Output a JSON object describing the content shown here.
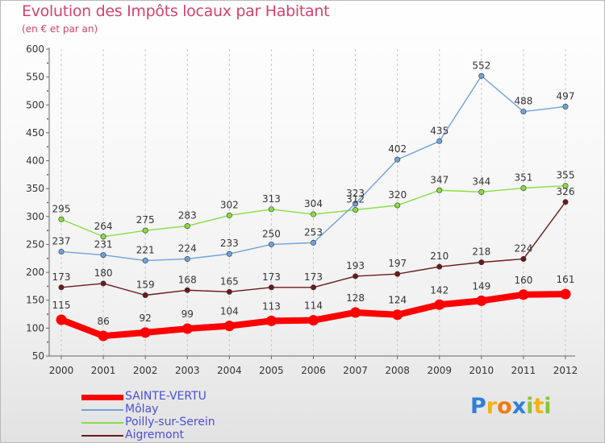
{
  "title": "Evolution des Impôts locaux par Habitant",
  "subtitle": "(en € et par an)",
  "chart_data": {
    "type": "line",
    "x": [
      "2000",
      "2001",
      "2002",
      "2003",
      "2004",
      "2005",
      "2006",
      "2007",
      "2008",
      "2009",
      "2010",
      "2011",
      "2012"
    ],
    "ylim": [
      50,
      600
    ],
    "yticks": [
      50,
      100,
      150,
      200,
      250,
      300,
      350,
      400,
      450,
      500,
      550,
      600
    ],
    "grid": "vertical",
    "series": [
      {
        "name": "SAINTE-VERTU",
        "color": "#ff0000",
        "values": [
          115,
          86,
          92,
          99,
          104,
          113,
          114,
          128,
          124,
          142,
          149,
          160,
          161
        ]
      },
      {
        "name": "Môlay",
        "color": "#6fa3d8",
        "values": [
          237,
          231,
          221,
          224,
          233,
          250,
          253,
          323,
          402,
          435,
          552,
          488,
          497
        ]
      },
      {
        "name": "Poilly-sur-Serein",
        "color": "#88dd44",
        "values": [
          295,
          264,
          275,
          283,
          302,
          313,
          304,
          312,
          320,
          347,
          344,
          351,
          355
        ]
      },
      {
        "name": "Aigremont",
        "color": "#6b1a1a",
        "values": [
          173,
          180,
          159,
          168,
          165,
          173,
          173,
          193,
          197,
          210,
          218,
          224,
          326
        ]
      }
    ]
  },
  "legend": {
    "items": [
      {
        "label": "SAINTE-VERTU",
        "color": "#ff0000"
      },
      {
        "label": "Môlay",
        "color": "#6fa3d8"
      },
      {
        "label": "Poilly-sur-Serein",
        "color": "#88dd44"
      },
      {
        "label": "Aigremont",
        "color": "#6b1a1a"
      }
    ]
  },
  "logo": {
    "letters": [
      "P",
      "r",
      "o",
      "x",
      "i",
      "t",
      "i"
    ],
    "colors": [
      "#2f7fd8",
      "#f2b316",
      "#f07a10",
      "#2f7fd8",
      "#8bc43a",
      "#f2b316",
      "#8bc43a"
    ]
  }
}
